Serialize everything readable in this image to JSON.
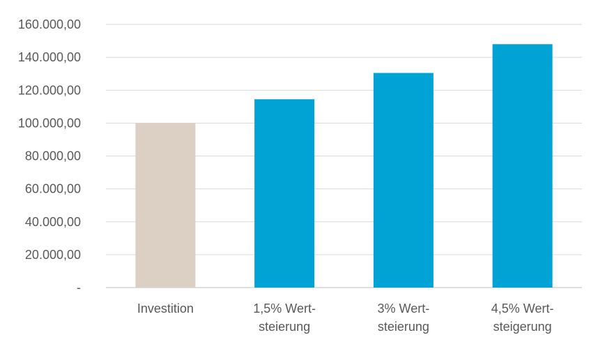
{
  "chart_data": {
    "type": "bar",
    "title": "",
    "xlabel": "",
    "ylabel": "",
    "ylim": [
      0,
      160000
    ],
    "grid": true,
    "legend": "none",
    "y_ticks": [
      {
        "value": 0,
        "label": "-"
      },
      {
        "value": 20000,
        "label": "20.000,00"
      },
      {
        "value": 40000,
        "label": "40.000,00"
      },
      {
        "value": 60000,
        "label": "60.000,00"
      },
      {
        "value": 80000,
        "label": "80.000,00"
      },
      {
        "value": 100000,
        "label": "100.000,00"
      },
      {
        "value": 120000,
        "label": "120.000,00"
      },
      {
        "value": 140000,
        "label": "140.000,00"
      },
      {
        "value": 160000,
        "label": "160.000,00"
      }
    ],
    "categories": [
      {
        "lines": [
          "Investition"
        ],
        "value": 100000,
        "color": "#dccfc3"
      },
      {
        "lines": [
          "1,5% Wert-",
          "steierung"
        ],
        "value": 114500,
        "color": "#00a3d4"
      },
      {
        "lines": [
          "3% Wert-",
          "steierung"
        ],
        "value": 130500,
        "color": "#00a3d4"
      },
      {
        "lines": [
          "4,5% Wert-",
          "steigerung"
        ],
        "value": 148000,
        "color": "#00a3d4"
      }
    ]
  }
}
